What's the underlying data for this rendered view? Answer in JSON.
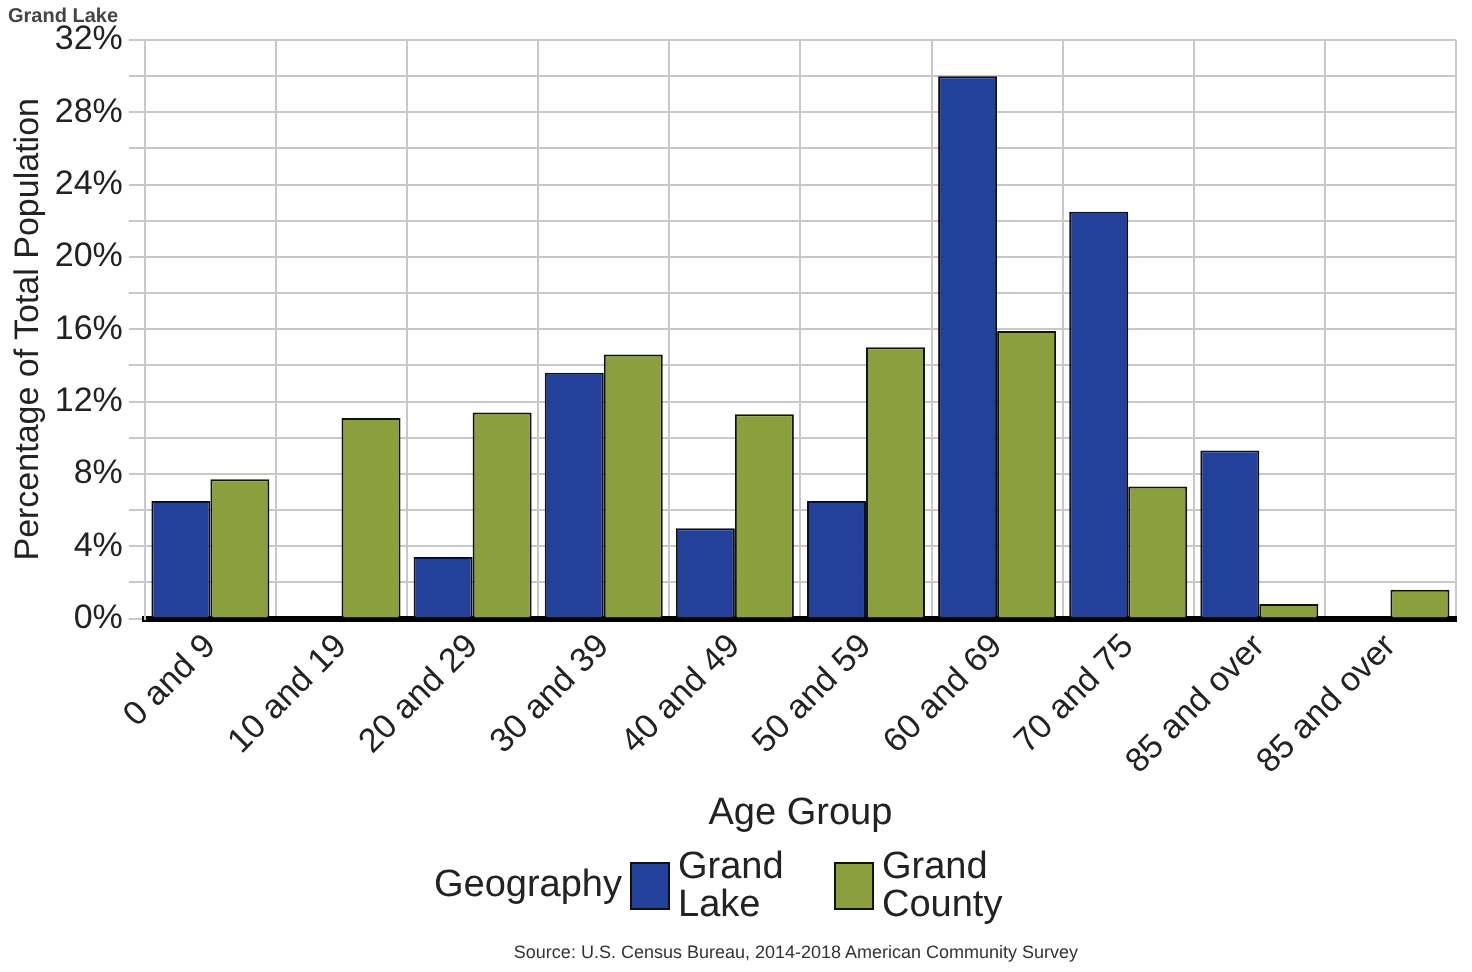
{
  "chart_data": {
    "type": "bar",
    "title": "Grand Lake",
    "xlabel": "Age Group",
    "ylabel": "Percentage of Total Population",
    "legend_title": "Geography",
    "categories": [
      "0 and 9",
      "10 and 19",
      "20 and 29",
      "30 and 39",
      "40 and 49",
      "50 and 59",
      "60 and 69",
      "70 and 75",
      "85 and over",
      "85 and over"
    ],
    "series": [
      {
        "name": "Grand Lake",
        "color": "#23409a",
        "values": [
          6.5,
          0,
          3.4,
          13.6,
          5.0,
          6.5,
          30.0,
          22.5,
          9.3,
          0
        ]
      },
      {
        "name": "Grand County",
        "color": "#8ba03c",
        "values": [
          7.7,
          11.1,
          11.4,
          14.6,
          11.3,
          15.0,
          15.9,
          7.3,
          0.8,
          1.6
        ]
      }
    ],
    "ylim": [
      0,
      32
    ],
    "yticks": [
      {
        "value": 0,
        "label": "0%"
      },
      {
        "value": 2,
        "label": null
      },
      {
        "value": 4,
        "label": "4%"
      },
      {
        "value": 6,
        "label": null
      },
      {
        "value": 8,
        "label": "8%"
      },
      {
        "value": 10,
        "label": null
      },
      {
        "value": 12,
        "label": "12%"
      },
      {
        "value": 14,
        "label": null
      },
      {
        "value": 16,
        "label": "16%"
      },
      {
        "value": 18,
        "label": null
      },
      {
        "value": 20,
        "label": "20%"
      },
      {
        "value": 22,
        "label": null
      },
      {
        "value": 24,
        "label": "24%"
      },
      {
        "value": 26,
        "label": null
      },
      {
        "value": 28,
        "label": "28%"
      },
      {
        "value": 30,
        "label": null
      },
      {
        "value": 32,
        "label": "32%"
      }
    ],
    "grid": true,
    "legend": "bottom",
    "annotations": [
      "Source: U.S. Census Bureau, 2014-2018 American Community Survey"
    ]
  }
}
